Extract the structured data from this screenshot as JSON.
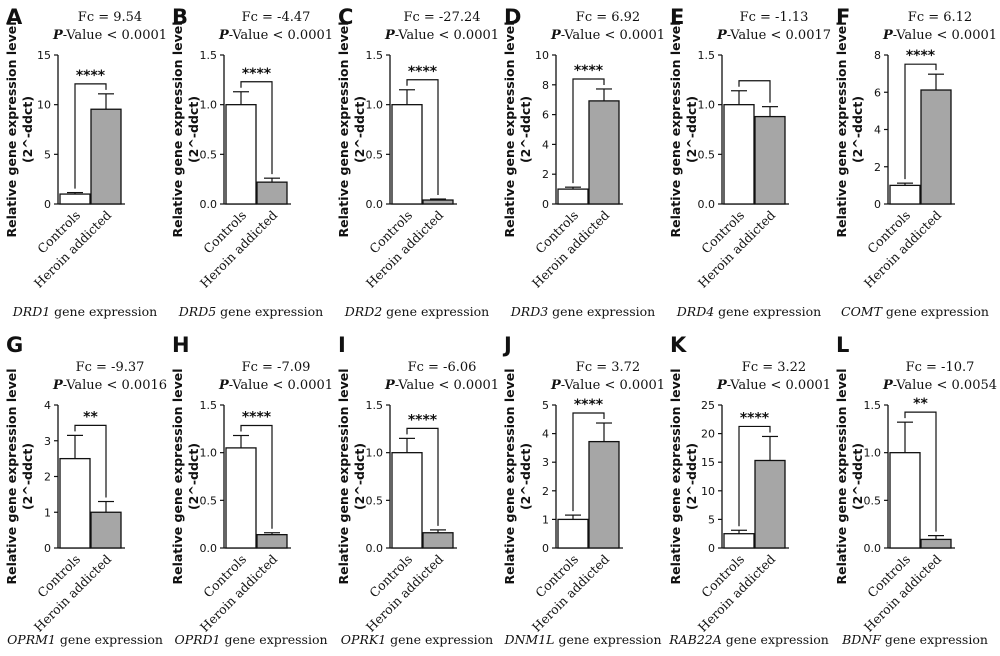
{
  "figure": {
    "y_label_line1": "Relative gene expression level",
    "y_label_line2": "(2^-ddct)",
    "categories": [
      "Controls",
      "Heroin addicted"
    ],
    "gene_suffix": "gene expression",
    "colors": {
      "controls": "#ffffff",
      "addicted": "#a6a6a6",
      "stroke": "#111111"
    }
  },
  "chart_data": [
    {
      "type": "bar",
      "panel": "A",
      "gene": "DRD1",
      "fc": "Fc = 9.54",
      "p_label": "P",
      "p_value": "-Value < 0.0001",
      "significance": "****",
      "categories": [
        "Controls",
        "Heroin addicted"
      ],
      "values": [
        1.0,
        9.54
      ],
      "errors": [
        0.15,
        1.55
      ],
      "ylim": [
        0,
        15
      ],
      "yticks": [
        0,
        5,
        10,
        15
      ],
      "tick_labels": [
        "0",
        "5",
        "10",
        "15"
      ]
    },
    {
      "type": "bar",
      "panel": "B",
      "gene": "DRD5",
      "fc": "Fc = -4.47",
      "p_label": "P",
      "p_value": "-Value < 0.0001",
      "significance": "****",
      "categories": [
        "Controls",
        "Heroin addicted"
      ],
      "values": [
        1.0,
        0.22
      ],
      "errors": [
        0.13,
        0.04
      ],
      "ylim": [
        0,
        1.5
      ],
      "yticks": [
        0,
        0.5,
        1.0,
        1.5
      ],
      "tick_labels": [
        "0.0",
        "0.5",
        "1.0",
        "1.5"
      ]
    },
    {
      "type": "bar",
      "panel": "C",
      "gene": "DRD2",
      "fc": "Fc = -27.24",
      "p_label": "P",
      "p_value": "-Value < 0.0001",
      "significance": "****",
      "categories": [
        "Controls",
        "Heroin addicted"
      ],
      "values": [
        1.0,
        0.04
      ],
      "errors": [
        0.15,
        0.01
      ],
      "ylim": [
        0,
        1.5
      ],
      "yticks": [
        0,
        0.5,
        1.0,
        1.5
      ],
      "tick_labels": [
        "0.0",
        "0.5",
        "1.0",
        "1.5"
      ]
    },
    {
      "type": "bar",
      "panel": "D",
      "gene": "DRD3",
      "fc": "Fc = 6.92",
      "p_label": "P",
      "p_value": "-Value < 0.0001",
      "significance": "****",
      "categories": [
        "Controls",
        "Heroin addicted"
      ],
      "values": [
        1.0,
        6.92
      ],
      "errors": [
        0.13,
        0.8
      ],
      "ylim": [
        0,
        10
      ],
      "yticks": [
        0,
        2,
        4,
        6,
        8,
        10
      ],
      "tick_labels": [
        "0",
        "2",
        "4",
        "6",
        "8",
        "10"
      ]
    },
    {
      "type": "bar",
      "panel": "E",
      "gene": "DRD4",
      "fc": "Fc = -1.13",
      "p_label": "P",
      "p_value": "-Value < 0.0017",
      "significance": "",
      "categories": [
        "Controls",
        "Heroin addicted"
      ],
      "values": [
        1.0,
        0.88
      ],
      "errors": [
        0.14,
        0.1
      ],
      "ylim": [
        0,
        1.5
      ],
      "yticks": [
        0,
        0.5,
        1.0,
        1.5
      ],
      "tick_labels": [
        "0.0",
        "0.5",
        "1.0",
        "1.5"
      ]
    },
    {
      "type": "bar",
      "panel": "F",
      "gene": "COMT",
      "fc": "Fc = 6.12",
      "p_label": "P",
      "p_value": "-Value < 0.0001",
      "significance": "****",
      "categories": [
        "Controls",
        "Heroin addicted"
      ],
      "values": [
        1.0,
        6.12
      ],
      "errors": [
        0.12,
        0.85
      ],
      "ylim": [
        0,
        8
      ],
      "yticks": [
        0,
        2,
        4,
        6,
        8
      ],
      "tick_labels": [
        "0",
        "2",
        "4",
        "6",
        "8"
      ]
    },
    {
      "type": "bar",
      "panel": "G",
      "gene": "OPRM1",
      "fc": "Fc = -9.37",
      "p_label": "P",
      "p_value": "-Value < 0.0016",
      "significance": "**",
      "categories": [
        "Controls",
        "Heroin addicted"
      ],
      "values": [
        2.5,
        1.0
      ],
      "errors": [
        0.65,
        0.3
      ],
      "ylim": [
        0,
        4
      ],
      "yticks": [
        0,
        1,
        2,
        3,
        4
      ],
      "tick_labels": [
        "0",
        "1",
        "2",
        "3",
        "4"
      ]
    },
    {
      "type": "bar",
      "panel": "H",
      "gene": "OPRD1",
      "fc": "Fc = -7.09",
      "p_label": "P",
      "p_value": "-Value < 0.0001",
      "significance": "****",
      "categories": [
        "Controls",
        "Heroin addicted"
      ],
      "values": [
        1.05,
        0.14
      ],
      "errors": [
        0.13,
        0.02
      ],
      "ylim": [
        0,
        1.5
      ],
      "yticks": [
        0,
        0.5,
        1.0,
        1.5
      ],
      "tick_labels": [
        "0.0",
        "0.5",
        "1.0",
        "1.5"
      ]
    },
    {
      "type": "bar",
      "panel": "I",
      "gene": "OPRK1",
      "fc": "Fc = -6.06",
      "p_label": "P",
      "p_value": "-Value < 0.0001",
      "significance": "****",
      "categories": [
        "Controls",
        "Heroin addicted"
      ],
      "values": [
        1.0,
        0.16
      ],
      "errors": [
        0.15,
        0.03
      ],
      "ylim": [
        0,
        1.5
      ],
      "yticks": [
        0,
        0.5,
        1.0,
        1.5
      ],
      "tick_labels": [
        "0.0",
        "0.5",
        "1.0",
        "1.5"
      ]
    },
    {
      "type": "bar",
      "panel": "J",
      "gene": "DNM1L",
      "fc": "Fc = 3.72",
      "p_label": "P",
      "p_value": "-Value < 0.0001",
      "significance": "****",
      "categories": [
        "Controls",
        "Heroin addicted"
      ],
      "values": [
        1.0,
        3.72
      ],
      "errors": [
        0.15,
        0.65
      ],
      "ylim": [
        0,
        5
      ],
      "yticks": [
        0,
        1,
        2,
        3,
        4,
        5
      ],
      "tick_labels": [
        "0",
        "1",
        "2",
        "3",
        "4",
        "5"
      ]
    },
    {
      "type": "bar",
      "panel": "K",
      "gene": "RAB22A",
      "fc": "Fc = 3.22",
      "p_label": "P",
      "p_value": "-Value < 0.0001",
      "significance": "****",
      "categories": [
        "Controls",
        "Heroin addicted"
      ],
      "values": [
        2.5,
        15.3
      ],
      "errors": [
        0.6,
        4.2
      ],
      "ylim": [
        0,
        25
      ],
      "yticks": [
        0,
        5,
        10,
        15,
        20,
        25
      ],
      "tick_labels": [
        "0",
        "5",
        "10",
        "15",
        "20",
        "25"
      ]
    },
    {
      "type": "bar",
      "panel": "L",
      "gene": "BDNF",
      "fc": "Fc = -10.7",
      "p_label": "P",
      "p_value": "-Value < 0.0054",
      "significance": "**",
      "categories": [
        "Controls",
        "Heroin addicted"
      ],
      "values": [
        1.0,
        0.09
      ],
      "errors": [
        0.32,
        0.04
      ],
      "ylim": [
        0,
        1.5
      ],
      "yticks": [
        0,
        0.5,
        1.0,
        1.5
      ],
      "tick_labels": [
        "0.0",
        "0.5",
        "1.0",
        "1.5"
      ]
    }
  ]
}
